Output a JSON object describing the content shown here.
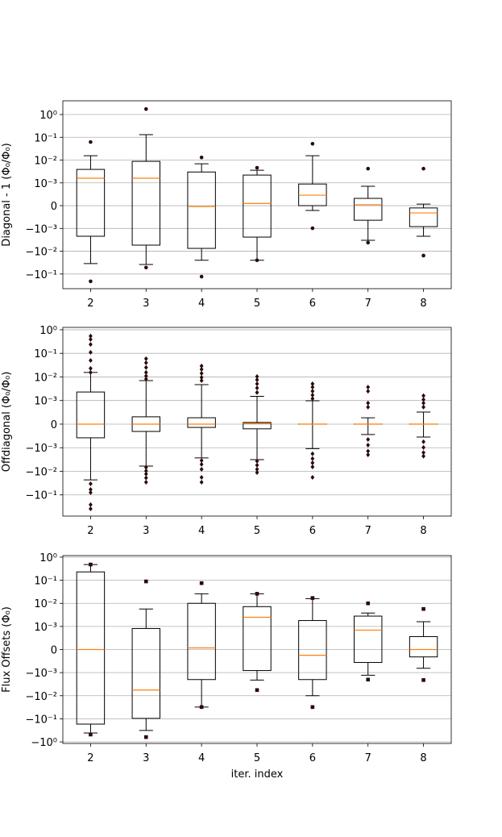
{
  "chart_data": [
    {
      "type": "box",
      "ylabel": "Diagonal - 1 (Φ₀/Φ₀)",
      "yscale": "symlog",
      "linthresh": 0.001,
      "grid": true,
      "box_color": "#000000",
      "median_color": "#ff7f0e",
      "flier_color": "#2a0a0a",
      "flier_marker": "circle",
      "categories": [
        "2",
        "3",
        "4",
        "5",
        "6",
        "7",
        "8"
      ],
      "ylim": [
        -0.44,
        4
      ],
      "yticks": [
        {
          "value": 1,
          "label": "10⁰"
        },
        {
          "value": 0.1,
          "label": "10⁻¹"
        },
        {
          "value": 0.01,
          "label": "10⁻²"
        },
        {
          "value": 0.001,
          "label": "10⁻³"
        },
        0,
        {
          "value": -0.001,
          "label": "−10⁻³"
        },
        {
          "value": -0.01,
          "label": "−10⁻²"
        },
        {
          "value": -0.1,
          "label": "−10⁻¹"
        }
      ],
      "boxes": [
        {
          "whislo": -0.035,
          "q1": -0.0022,
          "med": 0.0016,
          "q3": 0.0039,
          "whishi": 0.0155,
          "fliers": [
            0.062,
            -0.21
          ]
        },
        {
          "whislo": -0.038,
          "q1": -0.0054,
          "med": 0.0016,
          "q3": 0.0088,
          "whishi": 0.13,
          "fliers": [
            1.74,
            -0.052
          ]
        },
        {
          "whislo": -0.025,
          "q1": -0.0075,
          "med": -4e-05,
          "q3": 0.003,
          "whishi": 0.0069,
          "fliers": [
            0.013,
            -0.13
          ]
        },
        {
          "whislo": -0.025,
          "q1": -0.0024,
          "med": 0.0001,
          "q3": 0.0022,
          "whishi": 0.0036,
          "fliers": [
            0.0046,
            -0.025
          ]
        },
        {
          "whislo": -0.00021,
          "q1": 0,
          "med": 0.00046,
          "q3": 0.00095,
          "whishi": 0.0155,
          "fliers": [
            0.052,
            -0.00099
          ]
        },
        {
          "whislo": -0.0033,
          "q1": -0.00064,
          "med": 4e-05,
          "q3": 0.00032,
          "whishi": 0.00085,
          "fliers": [
            0.0042,
            -0.0042
          ]
        },
        {
          "whislo": -0.0022,
          "q1": -0.00092,
          "med": -0.00032,
          "q3": -0.0001,
          "whishi": 7e-05,
          "fliers": [
            0.0042,
            -0.0155
          ]
        }
      ]
    },
    {
      "type": "box",
      "ylabel": "Offdiagonal (Φ₀/Φ₀)",
      "yscale": "symlog",
      "linthresh": 0.001,
      "grid": true,
      "box_color": "#000000",
      "median_color": "#ff7f0e",
      "flier_color": "#2a0a0a",
      "flier_marker": "diamond",
      "categories": [
        "2",
        "3",
        "4",
        "5",
        "6",
        "7",
        "8"
      ],
      "ylim": [
        -0.79,
        1.26
      ],
      "yticks": [
        {
          "value": 1,
          "label": "10⁰"
        },
        {
          "value": 0.1,
          "label": "10⁻¹"
        },
        {
          "value": 0.01,
          "label": "10⁻²"
        },
        {
          "value": 0.001,
          "label": "10⁻³"
        },
        0,
        {
          "value": -0.001,
          "label": "−10⁻³"
        },
        {
          "value": -0.01,
          "label": "−10⁻²"
        },
        {
          "value": -0.1,
          "label": "−10⁻¹"
        }
      ],
      "boxes": [
        {
          "whislo": -0.023,
          "q1": -0.00058,
          "med": 0,
          "q3": 0.0023,
          "whishi": 0.0155,
          "fliers": [
            0.54,
            0.39,
            0.24,
            0.11,
            0.05,
            0.023,
            0.0155,
            -0.034,
            -0.059,
            -0.08,
            -0.26,
            -0.39
          ]
        },
        {
          "whislo": -0.006,
          "q1": -0.00031,
          "med": 0,
          "q3": 0.00031,
          "whishi": 0.007,
          "fliers": [
            0.059,
            0.04,
            0.025,
            0.0155,
            0.011,
            0.0082,
            -0.0069,
            -0.0096,
            -0.013,
            -0.019,
            -0.029
          ]
        },
        {
          "whislo": -0.0027,
          "q1": -0.00014,
          "med": 0,
          "q3": 0.00027,
          "whishi": 0.0047,
          "fliers": [
            0.029,
            0.021,
            0.0142,
            0.0096,
            0.007,
            -0.0035,
            -0.0051,
            -0.0082,
            -0.018,
            -0.029
          ]
        },
        {
          "whislo": -0.0032,
          "q1": -0.0002,
          "med": 3e-05,
          "q3": 7e-05,
          "whishi": 0.0015,
          "fliers": [
            0.0104,
            0.0076,
            0.0051,
            0.0034,
            0.0022,
            -0.0037,
            -0.0055,
            -0.0082,
            -0.0113
          ]
        },
        {
          "whislo": -0.0011,
          "q1": 0,
          "med": 0,
          "q3": 0,
          "whishi": 0.00099,
          "fliers": [
            0.0051,
            0.0037,
            0.0025,
            0.0017,
            0.0012,
            -0.0018,
            -0.0029,
            -0.0044,
            -0.0065,
            -0.018
          ]
        },
        {
          "whislo": -0.00044,
          "q1": 0,
          "med": 0,
          "q3": 0,
          "whishi": 0.00027,
          "fliers": [
            0.0037,
            0.0025,
            0.00089,
            0.00072,
            -0.00065,
            -0.00089,
            -0.0014,
            -0.002
          ]
        },
        {
          "whislo": -0.00055,
          "q1": 0,
          "med": 0,
          "q3": 0,
          "whishi": 0.00051,
          "fliers": [
            0.0016,
            0.0011,
            0.00089,
            0.00072,
            -0.00075,
            -0.00099,
            -0.0016,
            -0.0023
          ]
        }
      ]
    },
    {
      "type": "box",
      "ylabel": "Flux Offsets (Φ₀)",
      "xlabel": "iter. index",
      "yscale": "symlog",
      "linthresh": 0.001,
      "grid": true,
      "box_color": "#000000",
      "median_color": "#ff7f0e",
      "flier_color": "#2a0a0a",
      "flier_marker": "square",
      "categories": [
        "2",
        "3",
        "4",
        "5",
        "6",
        "7",
        "8"
      ],
      "ylim": [
        -1.17,
        1.17
      ],
      "yticks": [
        {
          "value": 1,
          "label": "10⁰"
        },
        {
          "value": 0.1,
          "label": "10⁻¹"
        },
        {
          "value": 0.01,
          "label": "10⁻²"
        },
        {
          "value": 0.001,
          "label": "10⁻³"
        },
        0,
        {
          "value": -0.001,
          "label": "−10⁻³"
        },
        {
          "value": -0.01,
          "label": "−10⁻²"
        },
        {
          "value": -0.1,
          "label": "−10⁻¹"
        },
        {
          "value": -1,
          "label": "−10⁰"
        }
      ],
      "boxes": [
        {
          "whislo": -0.41,
          "q1": -0.17,
          "med": 0,
          "q3": 0.23,
          "whishi": 0.48,
          "fliers": [
            0.48,
            -0.48
          ]
        },
        {
          "whislo": -0.32,
          "q1": -0.096,
          "med": -0.0057,
          "q3": 0.00091,
          "whishi": 0.0057,
          "fliers": [
            0.089,
            -0.62
          ]
        },
        {
          "whislo": -0.031,
          "q1": -0.002,
          "med": 7e-05,
          "q3": 0.01,
          "whishi": 0.026,
          "fliers": [
            0.075,
            -0.031
          ]
        },
        {
          "whislo": -0.0021,
          "q1": -0.00091,
          "med": 0.0025,
          "q3": 0.0072,
          "whishi": 0.026,
          "fliers": [
            0.026,
            -0.0057
          ]
        },
        {
          "whislo": -0.01,
          "q1": -0.002,
          "med": -0.00025,
          "q3": 0.0018,
          "whishi": 0.016,
          "fliers": [
            0.017,
            -0.031
          ]
        },
        {
          "whislo": -0.0013,
          "q1": -0.00056,
          "med": 0.00084,
          "q3": 0.0028,
          "whishi": 0.0038,
          "fliers": [
            0.01,
            -0.002
          ]
        },
        {
          "whislo": -0.00081,
          "q1": -0.00032,
          "med": 0,
          "q3": 0.00056,
          "whishi": 0.0016,
          "fliers": [
            0.0057,
            -0.0021
          ]
        }
      ]
    }
  ]
}
